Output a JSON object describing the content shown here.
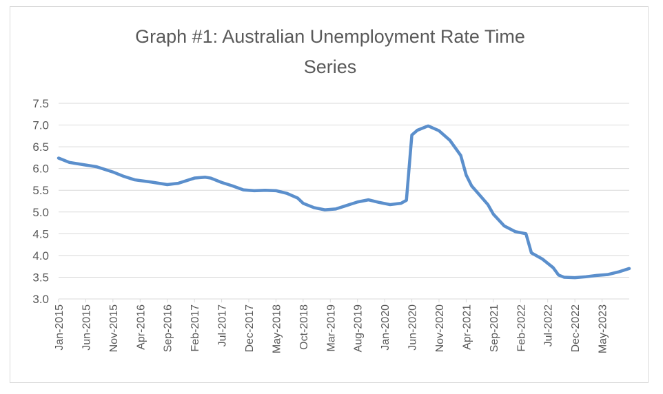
{
  "chart_data": {
    "type": "line",
    "title_lines": [
      "Graph #1: Australian Unemployment Rate Time",
      "Series"
    ],
    "xlabel": "",
    "ylabel": "",
    "ylim": [
      3.0,
      7.5
    ],
    "y_ticks": [
      "7.5",
      "7.0",
      "6.5",
      "6.0",
      "5.5",
      "5.0",
      "4.5",
      "4.0",
      "3.5",
      "3.0"
    ],
    "x_tick_labels": [
      "Jan-2015",
      "Jun-2015",
      "Nov-2015",
      "Apr-2016",
      "Sep-2016",
      "Feb-2017",
      "Jul-2017",
      "Dec-2017",
      "May-2018",
      "Oct-2018",
      "Mar-2019",
      "Aug-2019",
      "Jan-2020",
      "Jun-2020",
      "Nov-2020",
      "Apr-2021",
      "Sep-2021",
      "Feb-2022",
      "Jul-2022",
      "Dec-2022",
      "May-2023"
    ],
    "x_range": [
      "Jan-2015",
      "Oct-2023"
    ],
    "grid": "horizontal",
    "legend": "none",
    "line_color": "#5b8fcc",
    "series": [
      {
        "points": [
          [
            "Jan-2015",
            6.24
          ],
          [
            "Mar-2015",
            6.14
          ],
          [
            "Jun-2015",
            6.08
          ],
          [
            "Aug-2015",
            6.04
          ],
          [
            "Nov-2015",
            5.92
          ],
          [
            "Jan-2016",
            5.82
          ],
          [
            "Mar-2016",
            5.74
          ],
          [
            "Jun-2016",
            5.69
          ],
          [
            "Sep-2016",
            5.63
          ],
          [
            "Nov-2016",
            5.66
          ],
          [
            "Feb-2017",
            5.78
          ],
          [
            "Apr-2017",
            5.8
          ],
          [
            "May-2017",
            5.78
          ],
          [
            "Jul-2017",
            5.68
          ],
          [
            "Sep-2017",
            5.6
          ],
          [
            "Nov-2017",
            5.51
          ],
          [
            "Jan-2018",
            5.49
          ],
          [
            "Mar-2018",
            5.5
          ],
          [
            "May-2018",
            5.49
          ],
          [
            "Jul-2018",
            5.43
          ],
          [
            "Sep-2018",
            5.32
          ],
          [
            "Oct-2018",
            5.2
          ],
          [
            "Dec-2018",
            5.1
          ],
          [
            "Feb-2019",
            5.05
          ],
          [
            "Apr-2019",
            5.07
          ],
          [
            "Jun-2019",
            5.15
          ],
          [
            "Aug-2019",
            5.23
          ],
          [
            "Oct-2019",
            5.28
          ],
          [
            "Dec-2019",
            5.22
          ],
          [
            "Feb-2020",
            5.17
          ],
          [
            "Apr-2020",
            5.2
          ],
          [
            "May-2020",
            5.27
          ],
          [
            "Jun-2020",
            6.77
          ],
          [
            "Jul-2020",
            6.88
          ],
          [
            "Sep-2020",
            6.98
          ],
          [
            "Nov-2020",
            6.87
          ],
          [
            "Jan-2021",
            6.65
          ],
          [
            "Mar-2021",
            6.3
          ],
          [
            "Apr-2021",
            5.85
          ],
          [
            "May-2021",
            5.6
          ],
          [
            "Aug-2021",
            5.17
          ],
          [
            "Sep-2021",
            4.95
          ],
          [
            "Nov-2021",
            4.68
          ],
          [
            "Jan-2022",
            4.55
          ],
          [
            "Mar-2022",
            4.5
          ],
          [
            "Apr-2022",
            4.06
          ],
          [
            "Jun-2022",
            3.92
          ],
          [
            "Aug-2022",
            3.72
          ],
          [
            "Sep-2022",
            3.55
          ],
          [
            "Oct-2022",
            3.5
          ],
          [
            "Dec-2022",
            3.49
          ],
          [
            "Feb-2023",
            3.51
          ],
          [
            "Apr-2023",
            3.54
          ],
          [
            "Jun-2023",
            3.56
          ],
          [
            "Aug-2023",
            3.62
          ],
          [
            "Oct-2023",
            3.7
          ]
        ]
      }
    ]
  }
}
